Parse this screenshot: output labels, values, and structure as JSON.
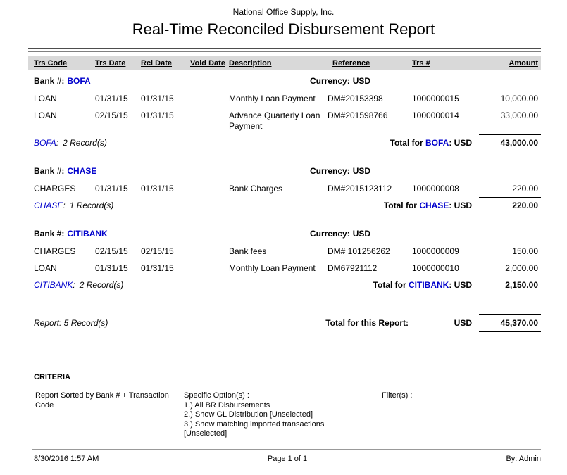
{
  "page": {
    "company": "National Office Supply, Inc.",
    "title": "Real-Time Reconciled Disbursement Report"
  },
  "labels": {
    "bank_prefix": "Bank #:",
    "currency_prefix": "Currency:",
    "colon": ":",
    "total_for": "Total for",
    "colon_usd": ": USD"
  },
  "columns": [
    "Trs Code",
    "Trs Date",
    "Rcl Date",
    "Void Date",
    "Description",
    "Reference",
    "Trs #",
    "Amount"
  ],
  "groups": [
    {
      "bank": "BOFA",
      "currency": "USD",
      "rows": [
        {
          "trs_code": "LOAN",
          "trs_date": "01/31/15",
          "rcl_date": "01/31/15",
          "void_date": "",
          "description": "Monthly Loan Payment",
          "reference": "DM#20153398",
          "trs_num": "1000000015",
          "amount": "10,000.00"
        },
        {
          "trs_code": "LOAN",
          "trs_date": "02/15/15",
          "rcl_date": "01/31/15",
          "void_date": "",
          "description": "Advance Quarterly Loan Payment",
          "reference": "DM#201598766",
          "trs_num": "1000000014",
          "amount": "33,000.00"
        }
      ],
      "record_text": "2 Record(s)",
      "total": "43,000.00"
    },
    {
      "bank": "CHASE",
      "currency": "USD",
      "rows": [
        {
          "trs_code": "CHARGES",
          "trs_date": "01/31/15",
          "rcl_date": "01/31/15",
          "void_date": "",
          "description": "Bank Charges",
          "reference": "DM#2015123112",
          "trs_num": "1000000008",
          "amount": "220.00"
        }
      ],
      "record_text": "1 Record(s)",
      "total": "220.00"
    },
    {
      "bank": "CITIBANK",
      "currency": "USD",
      "rows": [
        {
          "trs_code": "CHARGES",
          "trs_date": "02/15/15",
          "rcl_date": "02/15/15",
          "void_date": "",
          "description": "Bank fees",
          "reference": "DM# 101256262",
          "trs_num": "1000000009",
          "amount": "150.00"
        },
        {
          "trs_code": "LOAN",
          "trs_date": "01/31/15",
          "rcl_date": "01/31/15",
          "void_date": "",
          "description": "Monthly Loan Payment",
          "reference": "DM67921112",
          "trs_num": "1000000010",
          "amount": "2,000.00"
        }
      ],
      "record_text": "2 Record(s)",
      "total": "2,150.00"
    }
  ],
  "report_total": {
    "record_text": "Report: 5 Record(s)",
    "label": "Total for this Report:",
    "currency": "USD",
    "amount": "45,370.00"
  },
  "criteria": {
    "heading": "CRITERIA",
    "sorted_by": "Report Sorted by Bank # + Transaction Code",
    "specific_options_label": "Specific Option(s) :",
    "options": [
      "1.) All BR Disbursements",
      "2.) Show GL Distribution [Unselected]",
      "3.) Show matching imported transactions [Unselected]"
    ],
    "filters_label": "Filter(s) :"
  },
  "footer": {
    "datetime": "8/30/2016 1:57 AM",
    "page": "Page 1 of 1",
    "by": "By: Admin"
  },
  "colors": {
    "link_blue": "#0000CC",
    "header_band": "#D9D9D9",
    "rule_dark": "#4d4d4d"
  }
}
